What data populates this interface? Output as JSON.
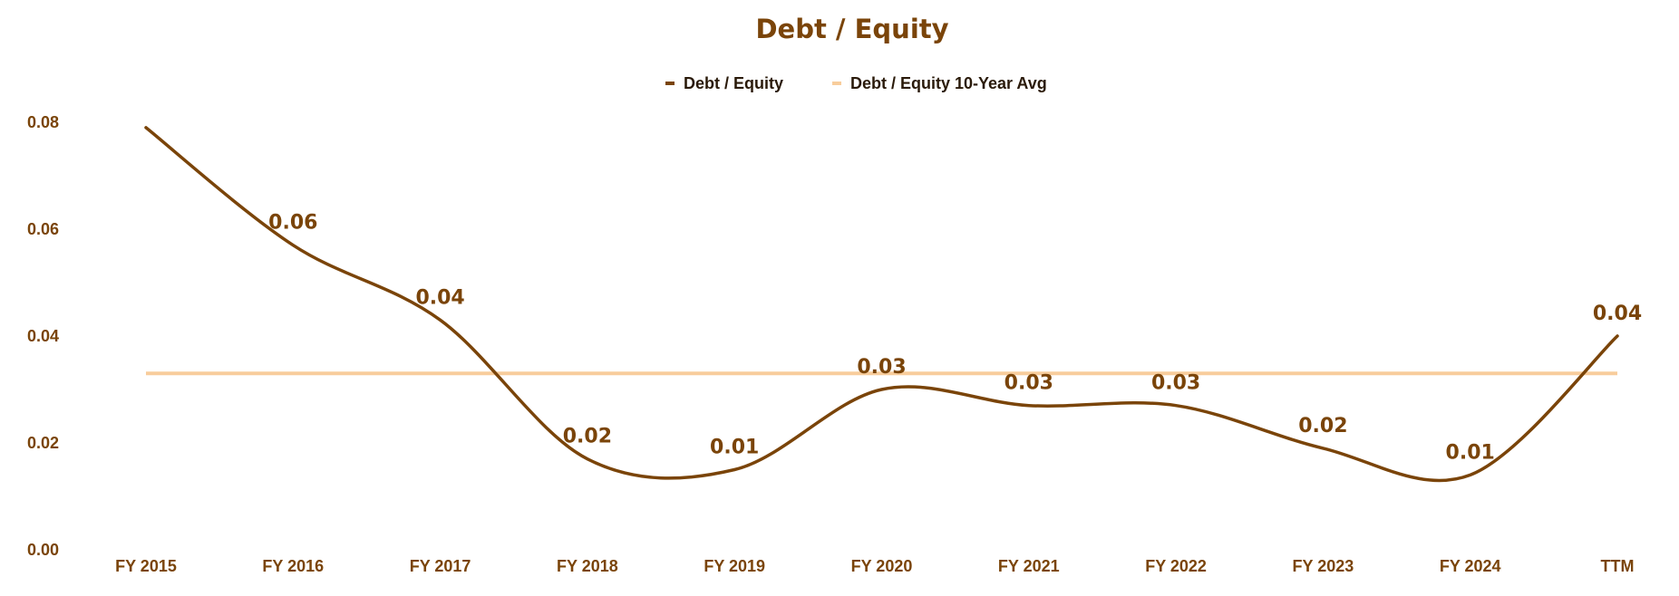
{
  "chart_data": {
    "type": "line",
    "title": "Debt / Equity",
    "categories": [
      "FY 2015",
      "FY 2016",
      "FY 2017",
      "FY 2018",
      "FY 2019",
      "FY 2020",
      "FY 2021",
      "FY 2022",
      "FY 2023",
      "FY 2024",
      "TTM"
    ],
    "series": [
      {
        "name": "Debt / Equity",
        "values": [
          0.079,
          0.057,
          0.043,
          0.017,
          0.015,
          0.03,
          0.027,
          0.027,
          0.019,
          0.014,
          0.04
        ],
        "labels": [
          "",
          "0.06",
          "0.04",
          "0.02",
          "0.01",
          "0.03",
          "0.03",
          "0.03",
          "0.02",
          "0.01",
          "0.04"
        ],
        "color": "#7a4409",
        "smooth": true
      },
      {
        "name": "Debt / Equity 10-Year Avg",
        "values": [
          0.033,
          0.033,
          0.033,
          0.033,
          0.033,
          0.033,
          0.033,
          0.033,
          0.033,
          0.033,
          0.033
        ],
        "color": "#f8cd9c"
      }
    ],
    "yticks": [
      "0.00",
      "0.02",
      "0.04",
      "0.06",
      "0.08"
    ],
    "ylim": [
      0,
      0.085
    ],
    "grid": false,
    "legend": "top-center",
    "colors": {
      "title": "#7a4409",
      "ticks": "#7a4409",
      "legend_text": "#2a1a0a"
    }
  }
}
